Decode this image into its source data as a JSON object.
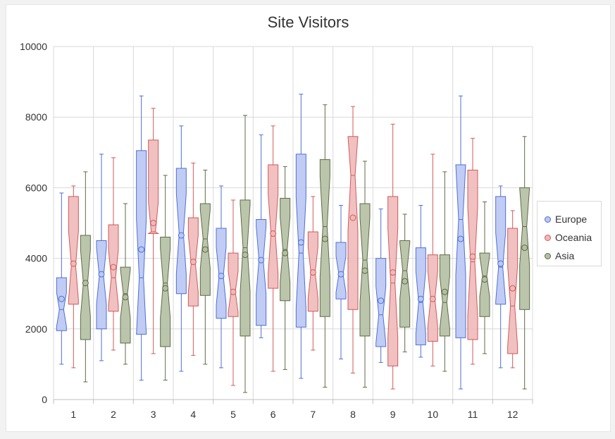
{
  "chart_data": {
    "type": "boxplot",
    "title": "Site Visitors",
    "xlabel": "",
    "ylabel": "",
    "categories": [
      "1",
      "2",
      "3",
      "4",
      "5",
      "6",
      "7",
      "8",
      "9",
      "10",
      "11",
      "12"
    ],
    "ylim": [
      0,
      10000
    ],
    "yticks": [
      0,
      2000,
      4000,
      6000,
      8000,
      10000
    ],
    "grid": true,
    "legend_position": "right",
    "notched": true,
    "series": [
      {
        "name": "Europe",
        "color": "#4f6fd6",
        "fill": "#b9c7f2",
        "boxes": [
          {
            "min": 1000,
            "q1": 1950,
            "median": 2550,
            "q3": 3450,
            "max": 5850,
            "mean": 2850
          },
          {
            "min": 1100,
            "q1": 2000,
            "median": 3500,
            "q3": 4500,
            "max": 6950,
            "mean": 3550
          },
          {
            "min": 550,
            "q1": 1850,
            "median": 3450,
            "q3": 7050,
            "max": 8600,
            "mean": 4250
          },
          {
            "min": 800,
            "q1": 3000,
            "median": 4700,
            "q3": 6550,
            "max": 7750,
            "mean": 4650
          },
          {
            "min": 900,
            "q1": 2300,
            "median": 3500,
            "q3": 4850,
            "max": 6050,
            "mean": 3500
          },
          {
            "min": 1750,
            "q1": 2100,
            "median": 3950,
            "q3": 5100,
            "max": 7500,
            "mean": 3950
          },
          {
            "min": 600,
            "q1": 2050,
            "median": 4150,
            "q3": 6950,
            "max": 8650,
            "mean": 4450
          },
          {
            "min": 1150,
            "q1": 2850,
            "median": 3550,
            "q3": 4450,
            "max": 5500,
            "mean": 3550
          },
          {
            "min": 1050,
            "q1": 1500,
            "median": 2400,
            "q3": 4000,
            "max": 5400,
            "mean": 2800
          },
          {
            "min": 1200,
            "q1": 1550,
            "median": 2750,
            "q3": 4300,
            "max": 5500,
            "mean": 2850
          },
          {
            "min": 300,
            "q1": 1750,
            "median": 5100,
            "q3": 6650,
            "max": 8600,
            "mean": 4550
          },
          {
            "min": 900,
            "q1": 2700,
            "median": 3750,
            "q3": 5750,
            "max": 6050,
            "mean": 3850
          }
        ]
      },
      {
        "name": "Oceania",
        "color": "#d05a5a",
        "fill": "#efb9b9",
        "boxes": [
          {
            "min": 900,
            "q1": 2700,
            "median": 3800,
            "q3": 5750,
            "max": 6050,
            "mean": 3850
          },
          {
            "min": 1400,
            "q1": 2500,
            "median": 3450,
            "q3": 4950,
            "max": 6850,
            "mean": 3750
          },
          {
            "min": 1300,
            "q1": 4700,
            "median": 4750,
            "q3": 7350,
            "max": 8250,
            "mean": 5000
          },
          {
            "min": 1250,
            "q1": 2650,
            "median": 3850,
            "q3": 5150,
            "max": 6700,
            "mean": 3900
          },
          {
            "min": 400,
            "q1": 2350,
            "median": 3050,
            "q3": 4150,
            "max": 5650,
            "mean": 3050
          },
          {
            "min": 800,
            "q1": 3150,
            "median": 4700,
            "q3": 6650,
            "max": 7750,
            "mean": 4700
          },
          {
            "min": 1400,
            "q1": 2500,
            "median": 3600,
            "q3": 4750,
            "max": 5750,
            "mean": 3600
          },
          {
            "min": 750,
            "q1": 2550,
            "median": 6350,
            "q3": 7450,
            "max": 8300,
            "mean": 5150
          },
          {
            "min": 300,
            "q1": 950,
            "median": 3300,
            "q3": 5750,
            "max": 7800,
            "mean": 3600
          },
          {
            "min": 950,
            "q1": 1650,
            "median": 2850,
            "q3": 4100,
            "max": 6950,
            "mean": 2850
          },
          {
            "min": 1000,
            "q1": 1700,
            "median": 3900,
            "q3": 6500,
            "max": 7400,
            "mean": 4050
          },
          {
            "min": 900,
            "q1": 1300,
            "median": 2650,
            "q3": 4850,
            "max": 5350,
            "mean": 3150
          }
        ]
      },
      {
        "name": "Asia",
        "color": "#5f6b45",
        "fill": "#b3bfa3",
        "boxes": [
          {
            "min": 500,
            "q1": 1700,
            "median": 3300,
            "q3": 4650,
            "max": 6450,
            "mean": 3300
          },
          {
            "min": 1000,
            "q1": 1600,
            "median": 3000,
            "q3": 3750,
            "max": 5550,
            "mean": 2900
          },
          {
            "min": 550,
            "q1": 1500,
            "median": 3300,
            "q3": 4600,
            "max": 6350,
            "mean": 3150
          },
          {
            "min": 1000,
            "q1": 2950,
            "median": 4550,
            "q3": 5550,
            "max": 6500,
            "mean": 4250
          },
          {
            "min": 200,
            "q1": 1800,
            "median": 4300,
            "q3": 5650,
            "max": 8050,
            "mean": 4100
          },
          {
            "min": 850,
            "q1": 2800,
            "median": 4250,
            "q3": 5700,
            "max": 6600,
            "mean": 4150
          },
          {
            "min": 350,
            "q1": 2350,
            "median": 4900,
            "q3": 6800,
            "max": 8350,
            "mean": 4550
          },
          {
            "min": 350,
            "q1": 1800,
            "median": 3950,
            "q3": 5550,
            "max": 6750,
            "mean": 3650
          },
          {
            "min": 1350,
            "q1": 2050,
            "median": 3650,
            "q3": 4500,
            "max": 5250,
            "mean": 3350
          },
          {
            "min": 800,
            "q1": 1800,
            "median": 2750,
            "q3": 4100,
            "max": 6450,
            "mean": 3050
          },
          {
            "min": 1300,
            "q1": 2350,
            "median": 3500,
            "q3": 4150,
            "max": 5600,
            "mean": 3400
          },
          {
            "min": 300,
            "q1": 2550,
            "median": 4900,
            "q3": 6000,
            "max": 7450,
            "mean": 4300
          }
        ]
      }
    ]
  }
}
